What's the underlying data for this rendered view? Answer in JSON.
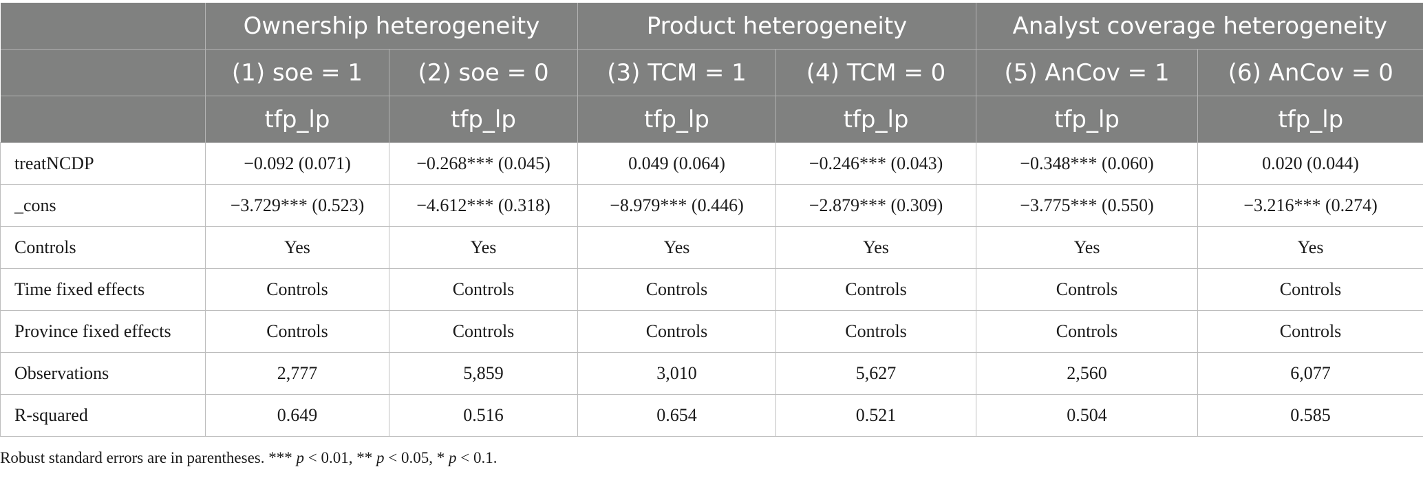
{
  "table": {
    "group_headers": [
      {
        "label": "Ownership heterogeneity",
        "span": 2
      },
      {
        "label": "Product heterogeneity",
        "span": 2
      },
      {
        "label": "Analyst coverage heterogeneity",
        "span": 2
      }
    ],
    "column_headers": [
      "(1) soe = 1",
      "(2) soe = 0",
      "(3) TCM = 1",
      "(4) TCM = 0",
      "(5) AnCov = 1",
      "(6) AnCov = 0"
    ],
    "dependent_vars": [
      "tfp_lp",
      "tfp_lp",
      "tfp_lp",
      "tfp_lp",
      "tfp_lp",
      "tfp_lp"
    ],
    "rows": [
      {
        "label": "treatNCDP",
        "cells": [
          "−0.092 (0.071)",
          "−0.268*** (0.045)",
          "0.049 (0.064)",
          "−0.246*** (0.043)",
          "−0.348*** (0.060)",
          "0.020 (0.044)"
        ]
      },
      {
        "label": "_cons",
        "cells": [
          "−3.729*** (0.523)",
          "−4.612*** (0.318)",
          "−8.979*** (0.446)",
          "−2.879*** (0.309)",
          "−3.775*** (0.550)",
          "−3.216*** (0.274)"
        ]
      },
      {
        "label": "Controls",
        "cells": [
          "Yes",
          "Yes",
          "Yes",
          "Yes",
          "Yes",
          "Yes"
        ]
      },
      {
        "label": "Time fixed effects",
        "cells": [
          "Controls",
          "Controls",
          "Controls",
          "Controls",
          "Controls",
          "Controls"
        ]
      },
      {
        "label": "Province fixed effects",
        "cells": [
          "Controls",
          "Controls",
          "Controls",
          "Controls",
          "Controls",
          "Controls"
        ]
      },
      {
        "label": "Observations",
        "cells": [
          "2,777",
          "5,859",
          "3,010",
          "5,627",
          "2,560",
          "6,077"
        ]
      },
      {
        "label": "R-squared",
        "cells": [
          "0.649",
          "0.516",
          "0.654",
          "0.521",
          "0.504",
          "0.585"
        ]
      }
    ]
  },
  "note": {
    "prefix": "Robust standard errors are in parentheses. *** ",
    "p1": "p",
    "t1": " < 0.01, ** ",
    "p2": "p",
    "t2": " < 0.05, * ",
    "p3": "p",
    "t3": " < 0.1."
  },
  "colors": {
    "header_bg": "#808180",
    "header_text": "#ffffff",
    "grid": "#bdbdbd"
  }
}
